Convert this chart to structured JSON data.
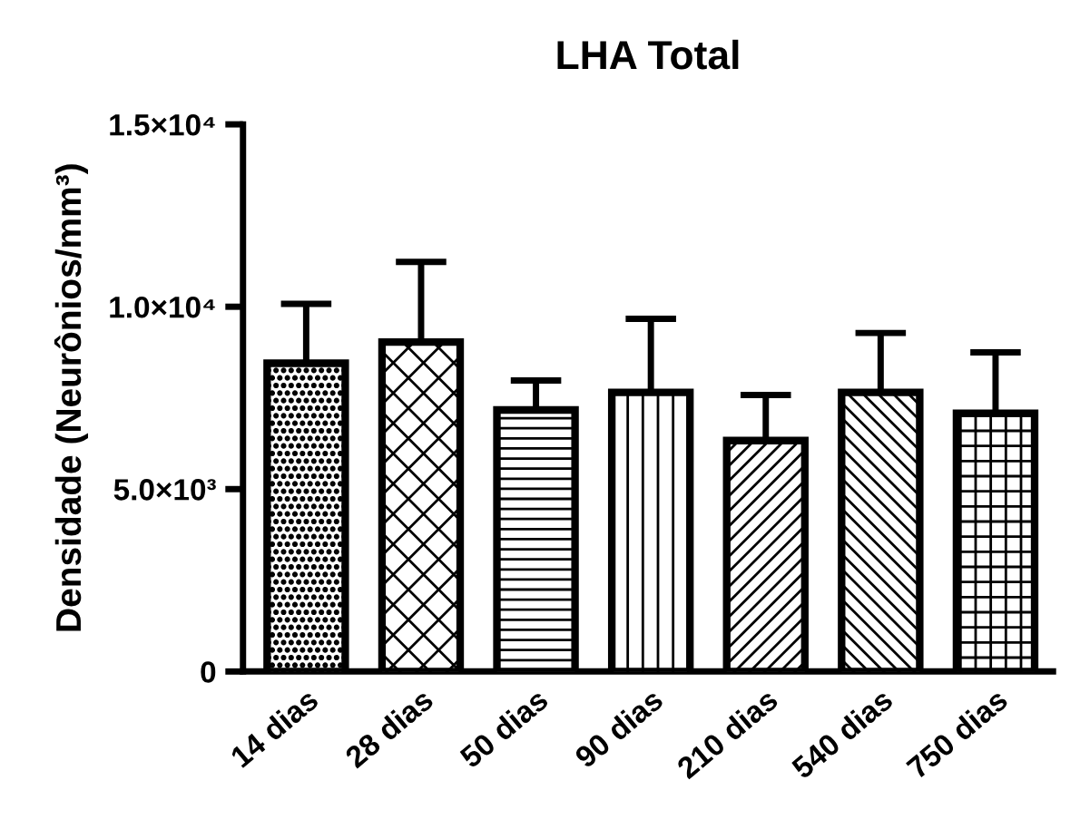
{
  "chart_data": {
    "type": "bar",
    "title": "LHA Total",
    "ylabel": "Densidade (Neurônios/mm³)",
    "categories": [
      "14 dias",
      "28 dias",
      "50 dias",
      "90 dias",
      "210 dias",
      "540 dias",
      "750 dias"
    ],
    "values": [
      8450,
      9030,
      7170,
      7650,
      6330,
      7650,
      7080
    ],
    "errors": [
      [
        8450,
        10080
      ],
      [
        9030,
        11230
      ],
      [
        7170,
        7980
      ],
      [
        7650,
        9670
      ],
      [
        6330,
        7580
      ],
      [
        7650,
        9280
      ],
      [
        7080,
        8750
      ]
    ],
    "color": "#000000",
    "ylim": [
      0,
      15000
    ],
    "yticks": [
      0,
      {
        "value": 5000,
        "label": "5.0×10³"
      },
      {
        "value": 10000,
        "label": "1.0×10⁴"
      },
      {
        "value": 15000,
        "label": "1.5×10⁴"
      }
    ],
    "grid": false,
    "legend": false
  }
}
